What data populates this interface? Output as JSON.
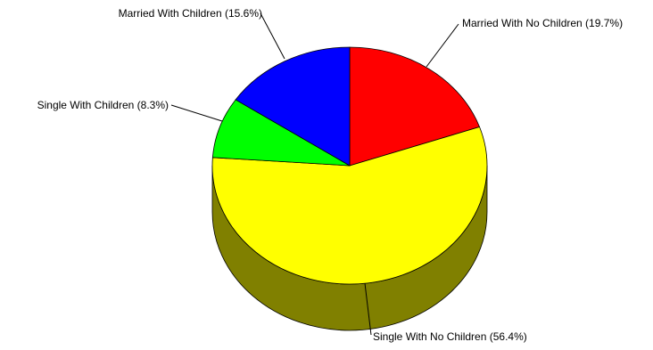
{
  "chart_data": {
    "type": "pie",
    "style": "3d",
    "title": "",
    "slices": [
      {
        "label": "Married With No Children (19.7%)",
        "category": "Married With No Children",
        "value": 19.7,
        "color": "#ff0000",
        "side_color": "#800000"
      },
      {
        "label": "Single With No Children (56.4%)",
        "category": "Single With No Children",
        "value": 56.4,
        "color": "#ffff00",
        "side_color": "#808000"
      },
      {
        "label": "Single With Children (8.3%)",
        "category": "Single With Children",
        "value": 8.3,
        "color": "#00ff00",
        "side_color": "#008000"
      },
      {
        "label": "Married With Children (15.6%)",
        "category": "Married With Children",
        "value": 15.6,
        "color": "#0000ff",
        "side_color": "#000080"
      }
    ],
    "start_angle": "12 o'clock",
    "direction": "clockwise",
    "legend": "none"
  }
}
